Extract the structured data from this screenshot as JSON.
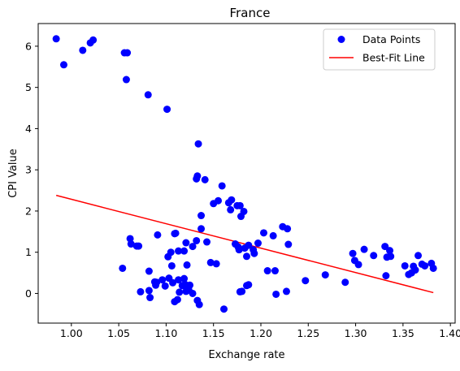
{
  "chart_data": {
    "type": "scatter",
    "title": "France",
    "xlabel": "Exchange rate",
    "ylabel": "CPI Value",
    "xlim": [
      0.965,
      1.405
    ],
    "ylim": [
      -0.72,
      6.55
    ],
    "xticks": [
      1.0,
      1.05,
      1.1,
      1.15,
      1.2,
      1.25,
      1.3,
      1.35,
      1.4
    ],
    "xtick_labels": [
      "1.00",
      "1.05",
      "1.10",
      "1.15",
      "1.20",
      "1.25",
      "1.30",
      "1.35",
      "1.40"
    ],
    "yticks": [
      0,
      1,
      2,
      3,
      4,
      5,
      6
    ],
    "ytick_labels": [
      "0",
      "1",
      "2",
      "3",
      "4",
      "5",
      "6"
    ],
    "grid": false,
    "legend_position": "top-right",
    "series": [
      {
        "name": "Data Points",
        "kind": "scatter",
        "color": "#0000ff",
        "points": [
          [
            0.984,
            6.18
          ],
          [
            0.992,
            5.55
          ],
          [
            1.012,
            5.9
          ],
          [
            1.02,
            6.08
          ],
          [
            1.023,
            6.15
          ],
          [
            1.056,
            5.84
          ],
          [
            1.059,
            5.84
          ],
          [
            1.058,
            5.19
          ],
          [
            1.081,
            4.82
          ],
          [
            1.101,
            4.47
          ],
          [
            1.134,
            3.63
          ],
          [
            1.132,
            2.78
          ],
          [
            1.133,
            2.85
          ],
          [
            1.141,
            2.76
          ],
          [
            1.159,
            2.61
          ],
          [
            1.155,
            2.25
          ],
          [
            1.15,
            2.18
          ],
          [
            1.166,
            2.2
          ],
          [
            1.169,
            2.27
          ],
          [
            1.168,
            2.03
          ],
          [
            1.175,
            2.13
          ],
          [
            1.178,
            2.13
          ],
          [
            1.179,
            1.87
          ],
          [
            1.182,
            1.99
          ],
          [
            1.137,
            1.89
          ],
          [
            1.137,
            1.57
          ],
          [
            1.132,
            1.28
          ],
          [
            1.128,
            1.14
          ],
          [
            1.143,
            1.25
          ],
          [
            1.062,
            1.33
          ],
          [
            1.063,
            1.2
          ],
          [
            1.071,
            1.15
          ],
          [
            1.069,
            1.15
          ],
          [
            1.091,
            1.42
          ],
          [
            1.109,
            1.45
          ],
          [
            1.11,
            1.46
          ],
          [
            1.105,
            1.0
          ],
          [
            1.102,
            0.89
          ],
          [
            1.106,
            0.67
          ],
          [
            1.113,
            1.03
          ],
          [
            1.119,
            1.03
          ],
          [
            1.121,
            1.23
          ],
          [
            1.122,
            0.69
          ],
          [
            1.054,
            0.61
          ],
          [
            1.082,
            0.54
          ],
          [
            1.073,
            0.04
          ],
          [
            1.082,
            0.07
          ],
          [
            1.083,
            -0.1
          ],
          [
            1.088,
            0.28
          ],
          [
            1.09,
            0.27
          ],
          [
            1.089,
            0.2
          ],
          [
            1.096,
            0.33
          ],
          [
            1.099,
            0.18
          ],
          [
            1.103,
            0.37
          ],
          [
            1.107,
            0.26
          ],
          [
            1.113,
            0.33
          ],
          [
            1.117,
            0.19
          ],
          [
            1.119,
            0.36
          ],
          [
            1.12,
            0.22
          ],
          [
            1.122,
            0.15
          ],
          [
            1.125,
            0.2
          ],
          [
            1.121,
            0.05
          ],
          [
            1.124,
            0.08
          ],
          [
            1.128,
            0.0
          ],
          [
            1.114,
            0.03
          ],
          [
            1.109,
            -0.2
          ],
          [
            1.112,
            -0.15
          ],
          [
            1.133,
            -0.17
          ],
          [
            1.135,
            -0.27
          ],
          [
            1.161,
            -0.38
          ],
          [
            1.147,
            0.75
          ],
          [
            1.153,
            0.72
          ],
          [
            1.173,
            1.2
          ],
          [
            1.176,
            1.13
          ],
          [
            1.177,
            1.06
          ],
          [
            1.183,
            1.1
          ],
          [
            1.185,
            0.9
          ],
          [
            1.187,
            1.17
          ],
          [
            1.192,
            1.06
          ],
          [
            1.193,
            0.97
          ],
          [
            1.197,
            1.22
          ],
          [
            1.203,
            1.47
          ],
          [
            1.213,
            1.4
          ],
          [
            1.223,
            1.62
          ],
          [
            1.228,
            1.57
          ],
          [
            1.229,
            1.19
          ],
          [
            1.207,
            0.55
          ],
          [
            1.215,
            0.55
          ],
          [
            1.216,
            -0.02
          ],
          [
            1.227,
            0.05
          ],
          [
            1.178,
            0.04
          ],
          [
            1.18,
            0.05
          ],
          [
            1.185,
            0.19
          ],
          [
            1.187,
            0.21
          ],
          [
            1.247,
            0.31
          ],
          [
            1.268,
            0.45
          ],
          [
            1.289,
            0.27
          ],
          [
            1.297,
            0.97
          ],
          [
            1.299,
            0.8
          ],
          [
            1.303,
            0.7
          ],
          [
            1.309,
            1.07
          ],
          [
            1.319,
            0.92
          ],
          [
            1.331,
            1.14
          ],
          [
            1.333,
            0.88
          ],
          [
            1.336,
            1.04
          ],
          [
            1.337,
            0.9
          ],
          [
            1.332,
            0.43
          ],
          [
            1.352,
            0.67
          ],
          [
            1.356,
            0.46
          ],
          [
            1.359,
            0.5
          ],
          [
            1.361,
            0.66
          ],
          [
            1.363,
            0.57
          ],
          [
            1.366,
            0.92
          ],
          [
            1.37,
            0.71
          ],
          [
            1.373,
            0.67
          ],
          [
            1.38,
            0.73
          ],
          [
            1.382,
            0.61
          ]
        ]
      },
      {
        "name": "Best-Fit Line",
        "kind": "line",
        "color": "#ff0000",
        "points": [
          [
            0.984,
            2.38
          ],
          [
            1.382,
            0.02
          ]
        ]
      }
    ]
  }
}
